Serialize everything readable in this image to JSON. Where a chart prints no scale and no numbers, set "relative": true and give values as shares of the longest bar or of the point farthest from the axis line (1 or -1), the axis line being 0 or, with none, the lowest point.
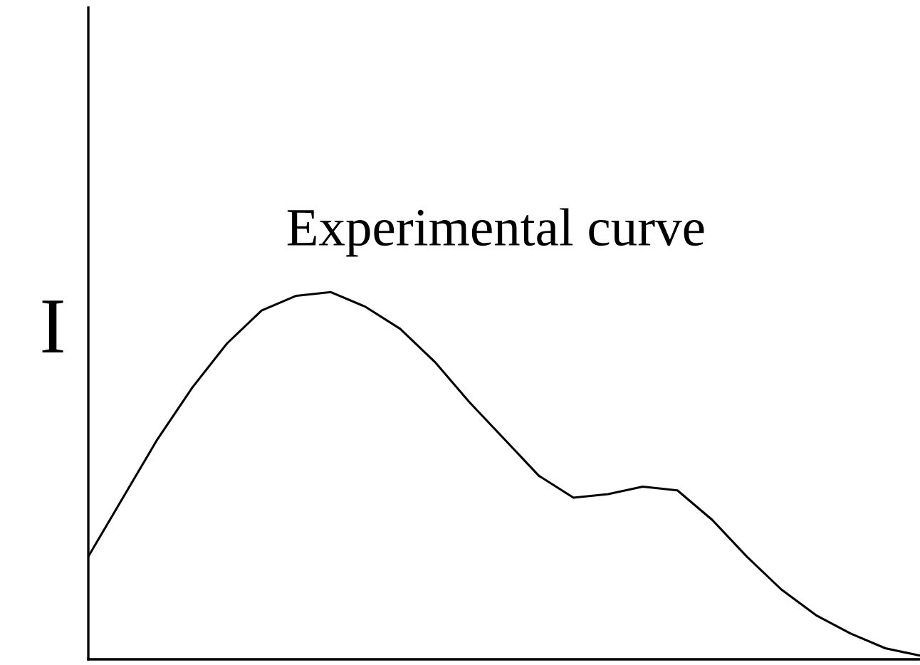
{
  "chart_data": {
    "type": "line",
    "relative": true,
    "ylabel": "I",
    "annotations": [
      "Experimental curve"
    ],
    "categories": [
      null,
      null,
      null,
      null,
      null,
      null,
      null,
      null,
      null,
      null,
      null,
      null,
      null,
      null,
      null,
      null,
      null,
      null,
      null,
      null,
      null,
      null,
      null,
      null,
      null
    ],
    "series": [
      {
        "color": "#000000",
        "values": [
          0.28,
          0.44,
          0.6,
          0.74,
          0.86,
          0.95,
          0.99,
          1.0,
          0.96,
          0.9,
          0.81,
          0.7,
          0.6,
          0.5,
          0.44,
          0.45,
          0.47,
          0.46,
          0.38,
          0.28,
          0.19,
          0.12,
          0.07,
          0.03,
          0.01
        ]
      }
    ],
    "legend": false,
    "marker": "none",
    "line_style": "solid"
  }
}
